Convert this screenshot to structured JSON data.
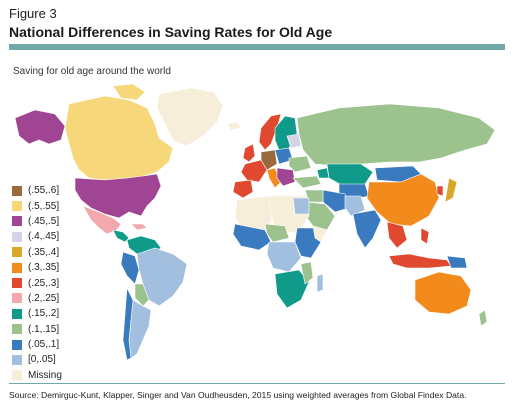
{
  "figure": {
    "label": "Figure 3",
    "title": "National Differences in Saving Rates for Old Age",
    "subtitle": "Saving for old age around the world",
    "source": "Source: Demirguc-Kunt, Klapper, Singer and Van Oudheusden, 2015 using weighted averages from Global Findex Data."
  },
  "legend": {
    "items": [
      {
        "label": "(.55,.6]",
        "color": "#9a6a3d"
      },
      {
        "label": "(.5,.55]",
        "color": "#f6d77a"
      },
      {
        "label": "(.45,.5]",
        "color": "#a04593"
      },
      {
        "label": "(.4,.45]",
        "color": "#d4d4e6"
      },
      {
        "label": "(.35,.4]",
        "color": "#d9a82a"
      },
      {
        "label": "(.3,.35]",
        "color": "#f28a1c"
      },
      {
        "label": "(.25,.3]",
        "color": "#e0482f"
      },
      {
        "label": "(.2,.25]",
        "color": "#f2a8ac"
      },
      {
        "label": "(.15,.2]",
        "color": "#0f9a8a"
      },
      {
        "label": "(.1,.15]",
        "color": "#9cc28e"
      },
      {
        "label": "(.05,.1]",
        "color": "#3a7bbf"
      },
      {
        "label": "[0,.05]",
        "color": "#a3bfe0"
      },
      {
        "label": "Missing",
        "color": "#f6eed8"
      }
    ]
  },
  "colors": {
    "rule": "#6fa9a7",
    "missing": "#f6eed8",
    "lowest": "#a3bfe0",
    "low": "#3a7bbf",
    "lowmid": "#9cc28e",
    "mid": "#0f9a8a",
    "pink": "#f2a8ac",
    "red": "#e0482f",
    "orange": "#f28a1c",
    "gold": "#d9a82a",
    "lavender": "#d4d4e6",
    "purple": "#a04593",
    "yellow": "#f6d77a",
    "brown": "#9a6a3d"
  }
}
